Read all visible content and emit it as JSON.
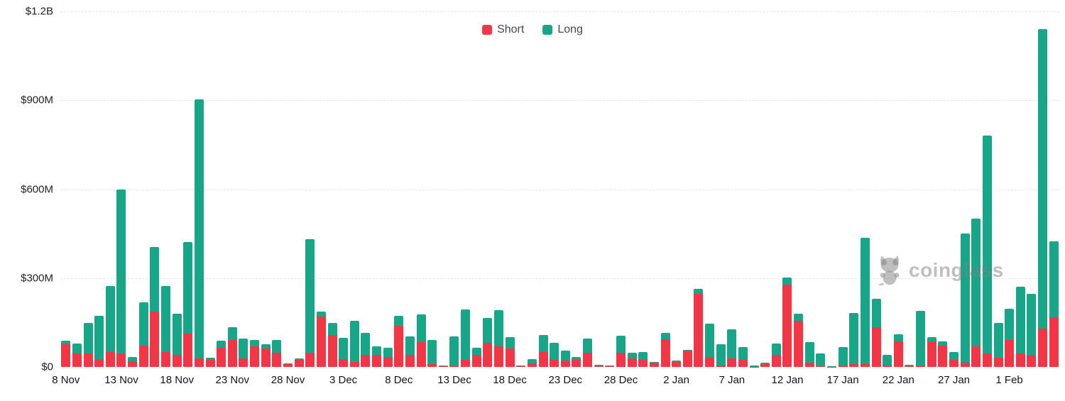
{
  "legend": {
    "short_label": "Short",
    "long_label": "Long"
  },
  "colors": {
    "short": "#f23645",
    "long": "#18a689",
    "grid": "#e7e7e7",
    "axis_text": "#1f1f1f",
    "watermark": "#c7c7c7"
  },
  "watermark": {
    "text": "coinglass"
  },
  "y_axis": {
    "rows": [
      {
        "label": "$1.2B",
        "value": 1200
      },
      {
        "label": "$900M",
        "value": 900
      },
      {
        "label": "$600M",
        "value": 600
      },
      {
        "label": "$300M",
        "value": 300
      },
      {
        "label": "$0",
        "value": 0
      }
    ]
  },
  "chart_data": {
    "type": "bar",
    "stacked": true,
    "title": "",
    "xlabel": "",
    "ylabel": "",
    "y_unit": "USD millions",
    "ylim": [
      0,
      1200
    ],
    "grid": "horizontal-dashed",
    "legend_position": "top-center",
    "categories": [
      "8 Nov",
      "9 Nov",
      "10 Nov",
      "11 Nov",
      "12 Nov",
      "13 Nov",
      "14 Nov",
      "15 Nov",
      "16 Nov",
      "17 Nov",
      "18 Nov",
      "19 Nov",
      "20 Nov",
      "21 Nov",
      "22 Nov",
      "23 Nov",
      "24 Nov",
      "25 Nov",
      "26 Nov",
      "27 Nov",
      "28 Nov",
      "29 Nov",
      "30 Nov",
      "1 Dec",
      "2 Dec",
      "3 Dec",
      "4 Dec",
      "5 Dec",
      "6 Dec",
      "7 Dec",
      "8 Dec",
      "9 Dec",
      "10 Dec",
      "11 Dec",
      "12 Dec",
      "13 Dec",
      "14 Dec",
      "15 Dec",
      "16 Dec",
      "17 Dec",
      "18 Dec",
      "19 Dec",
      "20 Dec",
      "21 Dec",
      "22 Dec",
      "23 Dec",
      "24 Dec",
      "25 Dec",
      "26 Dec",
      "27 Dec",
      "28 Dec",
      "29 Dec",
      "30 Dec",
      "31 Dec",
      "1 Jan",
      "2 Jan",
      "3 Jan",
      "4 Jan",
      "5 Jan",
      "6 Jan",
      "7 Jan",
      "8 Jan",
      "9 Jan",
      "10 Jan",
      "11 Jan",
      "12 Jan",
      "13 Jan",
      "14 Jan",
      "15 Jan",
      "16 Jan",
      "17 Jan",
      "18 Jan",
      "19 Jan",
      "20 Jan",
      "21 Jan",
      "22 Jan",
      "23 Jan",
      "24 Jan",
      "25 Jan",
      "26 Jan",
      "27 Jan",
      "28 Jan",
      "29 Jan",
      "30 Jan",
      "31 Jan",
      "1 Feb",
      "2 Feb",
      "3 Feb",
      "4 Feb",
      "5 Feb"
    ],
    "series": [
      {
        "name": "Short",
        "color": "#f23645",
        "values": [
          77,
          45,
          45,
          25,
          50,
          45,
          20,
          73,
          186,
          50,
          41,
          113,
          29,
          25,
          65,
          90,
          29,
          69,
          63,
          49,
          9,
          23,
          49,
          171,
          109,
          26,
          18,
          41,
          41,
          34,
          138,
          41,
          85,
          9,
          2,
          5,
          23,
          41,
          82,
          69,
          63,
          2,
          13,
          50,
          23,
          21,
          25,
          47,
          3,
          2,
          47,
          29,
          25,
          15,
          93,
          17,
          55,
          247,
          34,
          5,
          29,
          23,
          1,
          10,
          41,
          279,
          157,
          15,
          3,
          1,
          5,
          10,
          9,
          135,
          5,
          87,
          3,
          5,
          87,
          73,
          23,
          15,
          69,
          45,
          31,
          90,
          45,
          42,
          129,
          167
        ]
      },
      {
        "name": "Long",
        "color": "#18a689",
        "values": [
          12,
          33,
          104,
          148,
          224,
          553,
          13,
          145,
          219,
          223,
          140,
          308,
          874,
          6,
          24,
          45,
          66,
          21,
          14,
          41,
          4,
          6,
          382,
          16,
          40,
          72,
          139,
          73,
          28,
          31,
          34,
          62,
          93,
          81,
          4,
          98,
          170,
          25,
          83,
          122,
          38,
          3,
          13,
          59,
          58,
          34,
          9,
          50,
          3,
          2,
          59,
          20,
          25,
          2,
          21,
          4,
          3,
          16,
          112,
          72,
          98,
          43,
          3,
          5,
          38,
          24,
          24,
          70,
          42,
          1,
          61,
          171,
          428,
          96,
          37,
          24,
          3,
          184,
          14,
          14,
          27,
          435,
          432,
          736,
          118,
          107,
          226,
          205,
          1012,
          256
        ]
      }
    ],
    "ticks": [
      {
        "i": 0,
        "label": "8 Nov"
      },
      {
        "i": 5,
        "label": "13 Nov"
      },
      {
        "i": 10,
        "label": "18 Nov"
      },
      {
        "i": 15,
        "label": "23 Nov"
      },
      {
        "i": 20,
        "label": "28 Nov"
      },
      {
        "i": 25,
        "label": "3 Dec"
      },
      {
        "i": 30,
        "label": "8 Dec"
      },
      {
        "i": 35,
        "label": "13 Dec"
      },
      {
        "i": 40,
        "label": "18 Dec"
      },
      {
        "i": 45,
        "label": "23 Dec"
      },
      {
        "i": 50,
        "label": "28 Dec"
      },
      {
        "i": 55,
        "label": "2 Jan"
      },
      {
        "i": 60,
        "label": "7 Jan"
      },
      {
        "i": 65,
        "label": "12 Jan"
      },
      {
        "i": 70,
        "label": "17 Jan"
      },
      {
        "i": 75,
        "label": "22 Jan"
      },
      {
        "i": 80,
        "label": "27 Jan"
      },
      {
        "i": 85,
        "label": "1 Feb"
      }
    ]
  }
}
